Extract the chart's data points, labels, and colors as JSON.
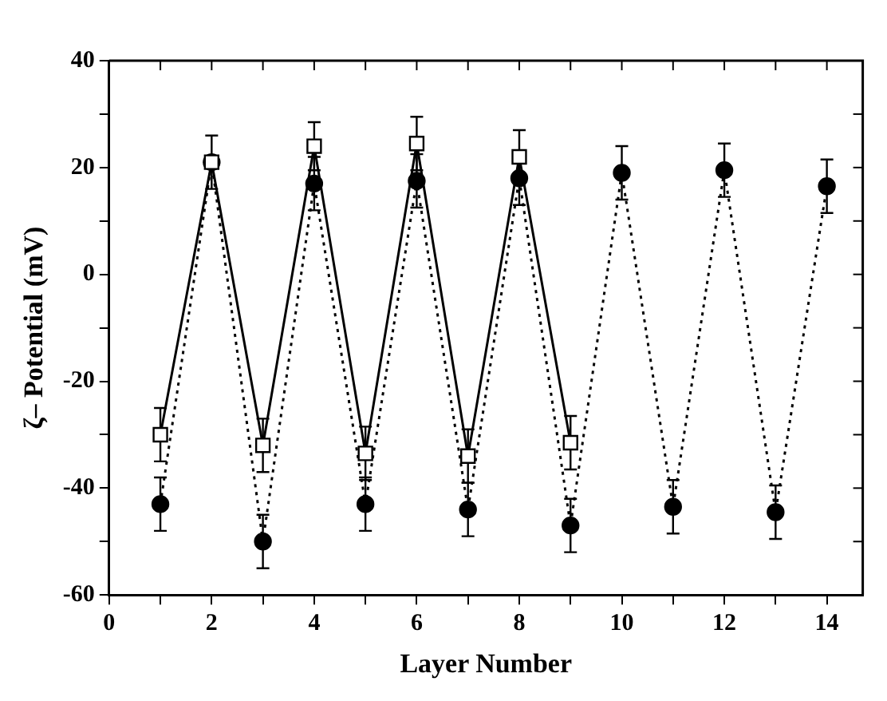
{
  "chart_data": {
    "type": "line",
    "xlabel": "Layer Number",
    "ylabel": "ζ– Potential (mV)",
    "xlim": [
      0,
      14.7
    ],
    "xticks": [
      0,
      {
        "value": 1,
        "label": null
      },
      2,
      {
        "value": 3,
        "label": null
      },
      4,
      {
        "value": 5,
        "label": null
      },
      6,
      {
        "value": 7,
        "label": null
      },
      8,
      {
        "value": 9,
        "label": null
      },
      10,
      {
        "value": 11,
        "label": null
      },
      12,
      {
        "value": 13,
        "label": null
      },
      14
    ],
    "ylim": [
      -60,
      40
    ],
    "yticks": [
      -60,
      {
        "value": -50,
        "label": null
      },
      -40,
      {
        "value": -30,
        "label": null
      },
      -20,
      {
        "value": -10,
        "label": null
      },
      0,
      {
        "value": 10,
        "label": null
      },
      20,
      {
        "value": 30,
        "label": null
      },
      40
    ],
    "grid": false,
    "legend": false,
    "series": [
      {
        "color": "#000000",
        "marker": "square",
        "line_style": "solid",
        "x": [
          1,
          2,
          3,
          4,
          5,
          6,
          7,
          8,
          9
        ],
        "values": [
          -30,
          21,
          -32,
          24,
          -33.5,
          24.5,
          -34,
          22,
          -31.5
        ],
        "errors": [
          5,
          5,
          5,
          4.5,
          5,
          5,
          5,
          5,
          5
        ]
      },
      {
        "color": "#000000",
        "marker": "circle",
        "line_style": "dotted",
        "x": [
          1,
          2,
          3,
          4,
          5,
          6,
          7,
          8,
          9,
          10,
          11,
          12,
          13,
          14
        ],
        "values": [
          -43,
          21,
          -50,
          17,
          -43,
          17.5,
          -44,
          18,
          -47,
          19,
          -43.5,
          19.5,
          -44.5,
          16.5
        ],
        "errors": [
          5,
          null,
          5,
          5,
          5,
          5,
          5,
          5,
          5,
          5,
          5,
          5,
          5,
          5
        ]
      }
    ]
  }
}
